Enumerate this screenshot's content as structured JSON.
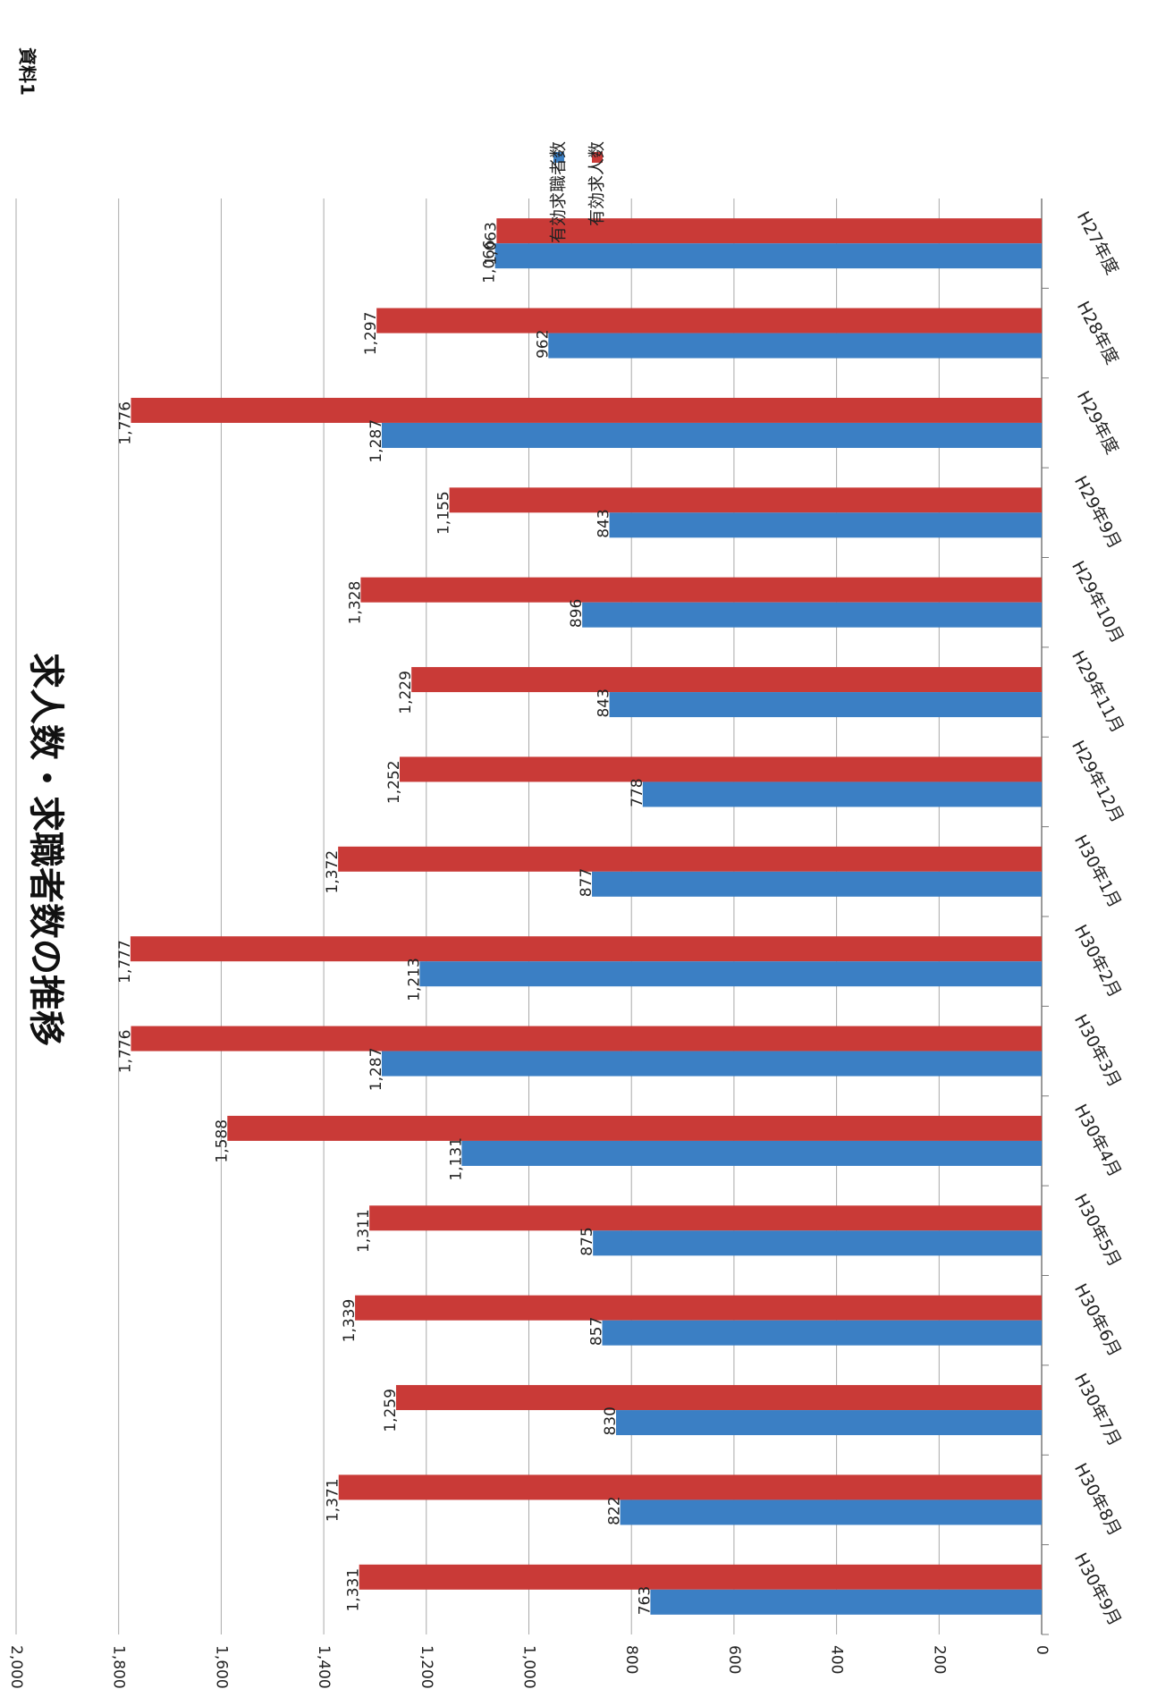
{
  "header": {
    "doc_label": "資料1"
  },
  "chart_data": {
    "type": "bar",
    "orientation": "horizontal",
    "title": "求人数・求職者数の推移",
    "categories": [
      "H27年度",
      "H28年度",
      "H29年度",
      "H29年9月",
      "H29年10月",
      "H29年11月",
      "H29年12月",
      "H30年1月",
      "H30年2月",
      "H30年3月",
      "H30年4月",
      "H30年5月",
      "H30年6月",
      "H30年7月",
      "H30年8月",
      "H30年9月"
    ],
    "series": [
      {
        "name": "有効求職者数",
        "color": "#3b7fc4",
        "values": [
          1066,
          962,
          1287,
          843,
          896,
          843,
          778,
          877,
          1213,
          1287,
          1131,
          875,
          857,
          830,
          822,
          763
        ],
        "labels": [
          "1,066",
          "962",
          "1,287",
          "843",
          "896",
          "843",
          "778",
          "877",
          "1,213",
          "1,287",
          "1,131",
          "875",
          "857",
          "830",
          "822",
          "763"
        ]
      },
      {
        "name": "有効求人数",
        "color": "#c93a37",
        "values": [
          1063,
          1297,
          1776,
          1155,
          1328,
          1229,
          1252,
          1372,
          1777,
          1776,
          1588,
          1311,
          1339,
          1259,
          1371,
          1331
        ],
        "labels": [
          "1,063",
          "1,297",
          "1,776",
          "1,155",
          "1,328",
          "1,229",
          "1,252",
          "1,372",
          "1,777",
          "1,776",
          "1,588",
          "1,311",
          "1,339",
          "1,259",
          "1,371",
          "1,331"
        ]
      }
    ],
    "value_axis": {
      "min": 0,
      "max": 2000,
      "step": 200,
      "tick_labels": [
        "0",
        "200",
        "400",
        "600",
        "800",
        "1,000",
        "1,200",
        "1,400",
        "1,600",
        "1,800",
        "2,000"
      ]
    },
    "grid": true,
    "legend_position": "top-right"
  }
}
